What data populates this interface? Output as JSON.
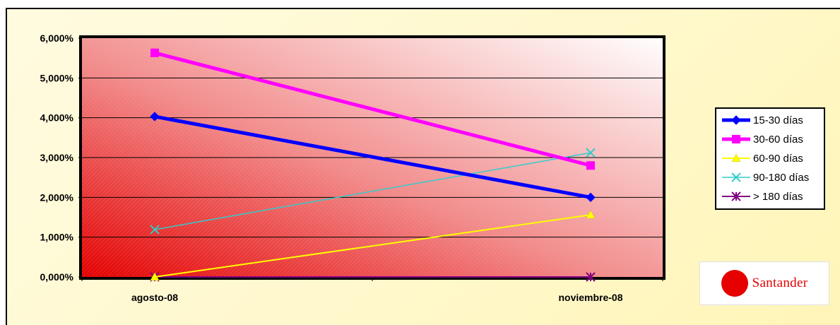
{
  "chart_data": {
    "type": "line",
    "categories": [
      "agosto-08",
      "noviembre-08"
    ],
    "series": [
      {
        "name": "15-30 días",
        "values": [
          4.03,
          2.0
        ],
        "color": "#0000ff",
        "marker": "diamond"
      },
      {
        "name": "30-60 días",
        "values": [
          5.63,
          2.8
        ],
        "color": "#ff00ff",
        "marker": "square"
      },
      {
        "name": "60-90 días",
        "values": [
          0.0,
          1.56
        ],
        "color": "#ffff00",
        "marker": "triangle"
      },
      {
        "name": "90-180 días",
        "values": [
          1.19,
          3.12
        ],
        "color": "#33cccc",
        "marker": "x"
      },
      {
        "name": "> 180 días",
        "values": [
          0.0,
          0.0
        ],
        "color": "#800080",
        "marker": "star"
      }
    ],
    "y_ticks": [
      "0,000%",
      "1,000%",
      "2,000%",
      "3,000%",
      "4,000%",
      "5,000%",
      "6,000%"
    ],
    "ylim": [
      0,
      6
    ],
    "grid": true,
    "legend_position": "right"
  },
  "logo": {
    "text": "Santander",
    "color": "#e60000"
  }
}
